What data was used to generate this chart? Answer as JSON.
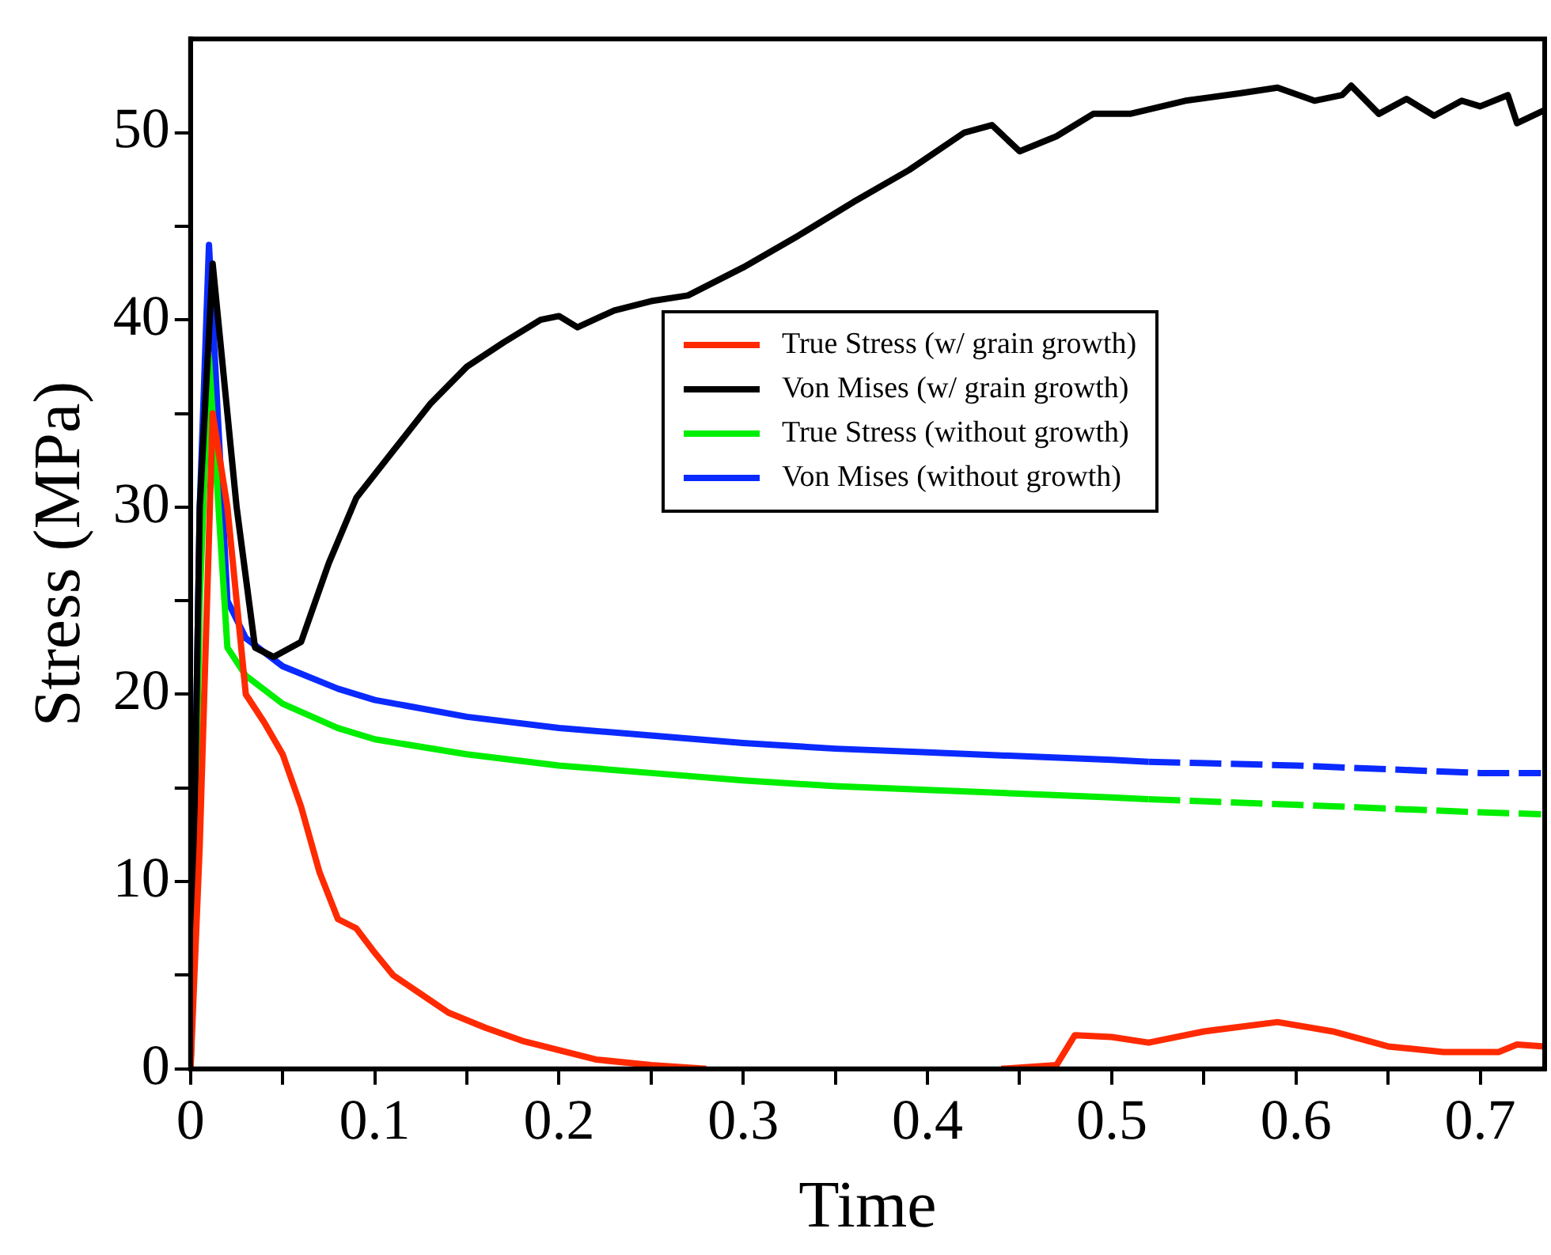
{
  "chart_data": {
    "type": "line",
    "xlabel": "Time",
    "ylabel": "Stress (MPa)",
    "xlim": [
      0,
      0.735
    ],
    "ylim": [
      0,
      55
    ],
    "xticks": [
      0,
      {
        "value": 0.05,
        "label": null
      },
      0.1,
      {
        "value": 0.15,
        "label": null
      },
      0.2,
      {
        "value": 0.25,
        "label": null
      },
      0.3,
      {
        "value": 0.35,
        "label": null
      },
      0.4,
      {
        "value": 0.45,
        "label": null
      },
      0.5,
      {
        "value": 0.55,
        "label": null
      },
      0.6,
      {
        "value": 0.65,
        "label": null
      },
      0.7
    ],
    "yticks": [
      0,
      {
        "value": 5,
        "label": null
      },
      10,
      {
        "value": 15,
        "label": null
      },
      20,
      {
        "value": 25,
        "label": null
      },
      30,
      {
        "value": 35,
        "label": null
      },
      40,
      {
        "value": 45,
        "label": null
      },
      50
    ],
    "grid": false,
    "legend": "top",
    "marker": "none",
    "line_style": "solid",
    "series": [
      {
        "name": "True Stress (w/ grain growth)",
        "color": "#ff2a00",
        "x": [
          0,
          0.005,
          0.012,
          0.02,
          0.03,
          0.04,
          0.05,
          0.06,
          0.07,
          0.08,
          0.09,
          0.1,
          0.11,
          0.125,
          0.14,
          0.16,
          0.18,
          0.2,
          0.22,
          0.25,
          0.28,
          0.3,
          0.44,
          0.47,
          0.48,
          0.5,
          0.52,
          0.55,
          0.59,
          0.62,
          0.65,
          0.68,
          0.71,
          0.72,
          0.735
        ],
        "values": [
          0,
          12,
          35,
          30,
          20,
          18.5,
          16.8,
          14,
          10.5,
          8,
          7.5,
          6.2,
          5,
          4,
          3,
          2.2,
          1.5,
          1,
          0.5,
          0.2,
          0,
          null,
          0,
          0.2,
          1.8,
          1.7,
          1.4,
          2,
          2.5,
          2,
          1.2,
          0.9,
          0.9,
          1.3,
          1.2
        ]
      },
      {
        "name": "Von Mises (w/ grain growth)",
        "color": "#000000",
        "x": [
          0,
          0.005,
          0.012,
          0.025,
          0.035,
          0.045,
          0.06,
          0.075,
          0.09,
          0.11,
          0.13,
          0.15,
          0.17,
          0.19,
          0.2,
          0.21,
          0.23,
          0.25,
          0.27,
          0.3,
          0.33,
          0.36,
          0.39,
          0.42,
          0.435,
          0.45,
          0.47,
          0.49,
          0.51,
          0.54,
          0.57,
          0.59,
          0.61,
          0.625,
          0.63,
          0.645,
          0.66,
          0.675,
          0.69,
          0.7,
          0.715,
          0.72,
          0.735
        ],
        "values": [
          0,
          30,
          43,
          30,
          22.5,
          22,
          22.8,
          27,
          30.5,
          33,
          35.5,
          37.5,
          38.8,
          40,
          40.2,
          39.6,
          40.5,
          41,
          41.3,
          42.8,
          44.5,
          46.3,
          48,
          50,
          50.4,
          49,
          49.8,
          51,
          51,
          51.7,
          52.1,
          52.4,
          51.7,
          52,
          52.5,
          51,
          51.8,
          50.9,
          51.7,
          51.4,
          52,
          50.5,
          51.2
        ]
      },
      {
        "name": "True Stress (without growth)",
        "color": "#00ee00",
        "x": [
          0,
          0.005,
          0.01,
          0.02,
          0.03,
          0.05,
          0.08,
          0.1,
          0.15,
          0.2,
          0.25,
          0.3,
          0.35,
          0.4,
          0.45,
          0.5,
          0.52
        ],
        "values": [
          0,
          25,
          38,
          22.5,
          21,
          19.5,
          18.2,
          17.6,
          16.8,
          16.2,
          15.8,
          15.4,
          15.1,
          14.9,
          14.7,
          14.5,
          14.4
        ]
      },
      {
        "name": "Von Mises (without growth)",
        "color": "#0a2aff",
        "x": [
          0,
          0.005,
          0.01,
          0.02,
          0.03,
          0.05,
          0.08,
          0.1,
          0.15,
          0.2,
          0.25,
          0.3,
          0.35,
          0.4,
          0.45,
          0.5,
          0.52
        ],
        "values": [
          0,
          30,
          44,
          25,
          23,
          21.5,
          20.3,
          19.7,
          18.8,
          18.2,
          17.8,
          17.4,
          17.1,
          16.9,
          16.7,
          16.5,
          16.4
        ]
      },
      {
        "color": "#00ee00",
        "line_style": "dashed",
        "x": [
          0.52,
          0.6,
          0.7,
          0.733
        ],
        "values": [
          14.4,
          14.1,
          13.7,
          13.6
        ]
      },
      {
        "color": "#0a2aff",
        "line_style": "dashed",
        "x": [
          0.52,
          0.6,
          0.7,
          0.733
        ],
        "values": [
          16.4,
          16.2,
          15.8,
          15.8
        ]
      }
    ]
  }
}
